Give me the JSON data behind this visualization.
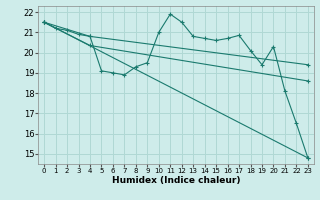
{
  "xlabel": "Humidex (Indice chaleur)",
  "background_color": "#ceecea",
  "grid_color": "#b0d8d4",
  "line_color": "#1a7a6e",
  "xlim": [
    -0.5,
    23.5
  ],
  "ylim": [
    14.5,
    22.3
  ],
  "xticks": [
    0,
    1,
    2,
    3,
    4,
    5,
    6,
    7,
    8,
    9,
    10,
    11,
    12,
    13,
    14,
    15,
    16,
    17,
    18,
    19,
    20,
    21,
    22,
    23
  ],
  "yticks": [
    15,
    16,
    17,
    18,
    19,
    20,
    21,
    22
  ],
  "lines": [
    {
      "x": [
        0,
        1,
        2,
        3,
        4,
        5,
        6,
        7,
        8,
        9,
        10,
        11,
        12,
        13,
        14,
        15,
        16,
        17,
        18,
        19,
        20,
        21,
        22,
        23
      ],
      "y": [
        21.5,
        21.2,
        21.1,
        20.9,
        20.8,
        19.1,
        19.0,
        18.9,
        19.3,
        19.5,
        21.0,
        21.9,
        21.5,
        20.8,
        20.7,
        20.6,
        20.7,
        20.85,
        20.1,
        19.4,
        20.3,
        18.1,
        16.5,
        14.8
      ]
    },
    {
      "x": [
        0,
        4,
        23
      ],
      "y": [
        21.5,
        20.8,
        19.4
      ]
    },
    {
      "x": [
        0,
        4,
        23
      ],
      "y": [
        21.5,
        20.35,
        18.6
      ]
    },
    {
      "x": [
        0,
        23
      ],
      "y": [
        21.5,
        14.8
      ]
    }
  ]
}
